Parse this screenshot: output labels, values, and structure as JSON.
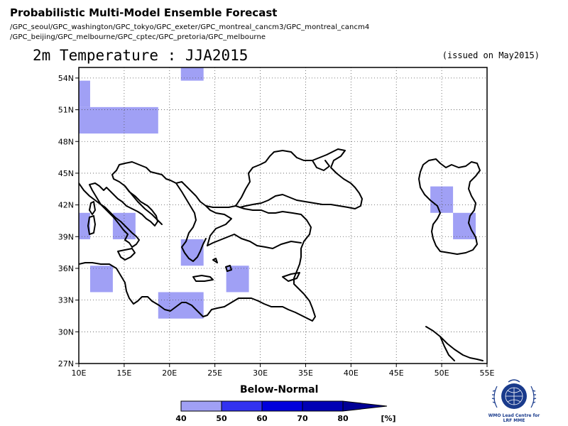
{
  "header": {
    "title": "Probabilistic Multi-Model Ensemble Forecast",
    "models_line1": "/GPC_seoul/GPC_washington/GPC_tokyo/GPC_exeter/GPC_montreal_cancm3/GPC_montreal_cancm4",
    "models_line2": "/GPC_beijing/GPC_melbourne/GPC_cptec/GPC_pretoria/GPC_melbourne"
  },
  "map": {
    "title": "2m Temperature : JJA2015",
    "issued": "(issued on May2015)",
    "lon_ticks": [
      "10E",
      "15E",
      "20E",
      "25E",
      "30E",
      "35E",
      "40E",
      "45E",
      "50E",
      "55E"
    ],
    "lat_ticks": [
      "54N",
      "51N",
      "48N",
      "45N",
      "42N",
      "39N",
      "36N",
      "33N",
      "30N",
      "27N"
    ],
    "extent": {
      "lon_min": 10,
      "lon_max": 55,
      "lat_min": 27,
      "lat_max": 55
    },
    "cells_below_normal_40_50": [
      {
        "lon": [
          21.25,
          23.75
        ],
        "lat": [
          53.75,
          55
        ]
      },
      {
        "lon": [
          10,
          11.25
        ],
        "lat": [
          51.25,
          53.75
        ]
      },
      {
        "lon": [
          10,
          18.75
        ],
        "lat": [
          48.75,
          51.25
        ]
      },
      {
        "lon": [
          10,
          11.25
        ],
        "lat": [
          38.75,
          41.25
        ]
      },
      {
        "lon": [
          13.75,
          16.25
        ],
        "lat": [
          38.75,
          41.25
        ]
      },
      {
        "lon": [
          48.75,
          51.25
        ],
        "lat": [
          41.25,
          43.75
        ]
      },
      {
        "lon": [
          51.25,
          53.75
        ],
        "lat": [
          38.75,
          41.25
        ]
      },
      {
        "lon": [
          21.25,
          23.75
        ],
        "lat": [
          36.25,
          38.75
        ]
      },
      {
        "lon": [
          11.25,
          13.75
        ],
        "lat": [
          33.75,
          36.25
        ]
      },
      {
        "lon": [
          26.25,
          28.75
        ],
        "lat": [
          33.75,
          36.25
        ]
      },
      {
        "lon": [
          18.75,
          23.75
        ],
        "lat": [
          31.25,
          33.75
        ]
      }
    ]
  },
  "legend": {
    "title": "Below-Normal",
    "labels": [
      "40",
      "50",
      "60",
      "70",
      "80"
    ],
    "unit": "[%]",
    "colors": [
      "#a0a0f5",
      "#3232f0",
      "#0000dc",
      "#0000b4",
      "#000096"
    ]
  },
  "logo": {
    "line1": "WMO Lead Centre for",
    "line2": "LRF MME"
  },
  "colors": {
    "cell_fill": "#a0a0f5",
    "coast": "#000000",
    "grid": "#555555"
  }
}
